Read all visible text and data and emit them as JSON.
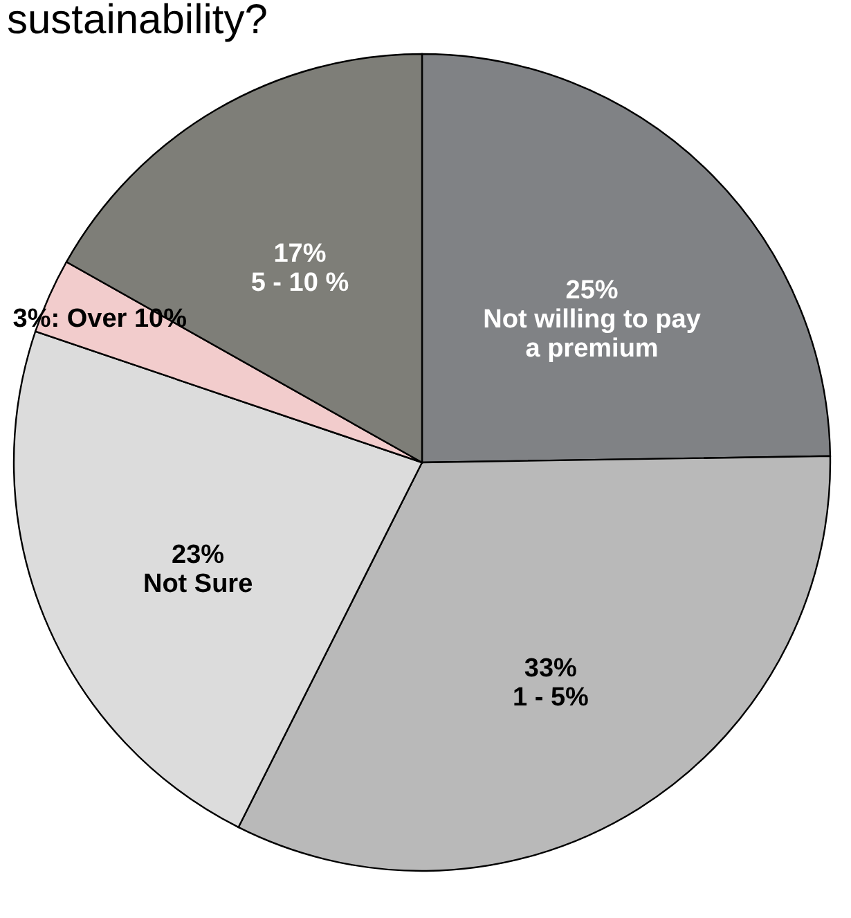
{
  "chart_data": {
    "type": "pie",
    "title": "sustainability?",
    "categories": [
      "Not willing to pay\na premium",
      "1 - 5%",
      "Not Sure",
      "Over 10%",
      "5 - 10 %"
    ],
    "values": [
      25,
      33,
      23,
      3,
      17
    ],
    "value_labels": [
      "25%",
      "33%",
      "23%",
      "3%:",
      "17%"
    ],
    "colors": [
      "#808285",
      "#b9b9b9",
      "#dcdcdc",
      "#f2cccc",
      "#7e7e78"
    ],
    "legend": false
  }
}
